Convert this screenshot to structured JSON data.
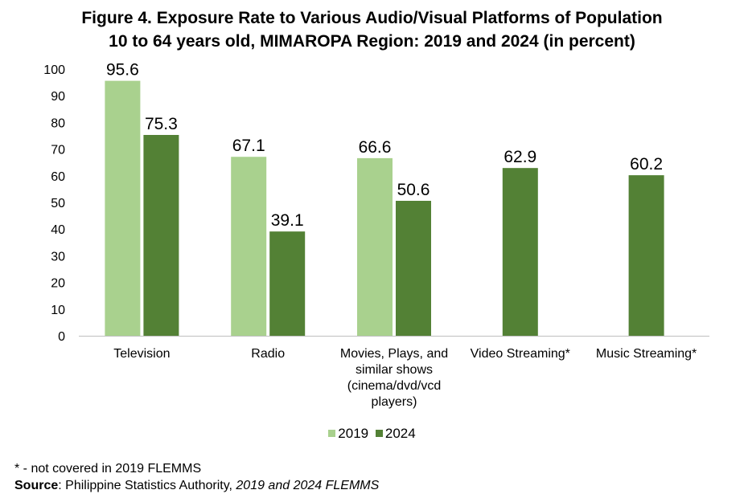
{
  "chart_data": {
    "type": "bar",
    "title_line1": "Figure 4. Exposure Rate to Various Audio/Visual Platforms of Population",
    "title_line2": "10 to 64 years old, MIMAROPA Region: 2019 and 2024 (in percent)",
    "categories": [
      [
        "Television"
      ],
      [
        "Radio"
      ],
      [
        "Movies, Plays, and",
        "similar shows",
        "(cinema/dvd/vcd",
        "players)"
      ],
      [
        "Video Streaming*"
      ],
      [
        "Music Streaming*"
      ]
    ],
    "series": [
      {
        "name": "2019",
        "color": "#a9d18e",
        "values": [
          95.6,
          67.1,
          66.6,
          null,
          null
        ]
      },
      {
        "name": "2024",
        "color": "#538135",
        "values": [
          75.3,
          39.1,
          50.6,
          62.9,
          60.2
        ]
      }
    ],
    "yticks": [
      "0",
      "10",
      "20",
      "30",
      "40",
      "50",
      "60",
      "70",
      "80",
      "90",
      "100"
    ],
    "ylim": [
      0,
      100
    ],
    "legend_position": "bottom",
    "grid": false
  },
  "footnote": "* - not covered in 2019 FLEMMS",
  "source": {
    "label": "Source",
    "sep": ": ",
    "org": "Philippine Statistics Authority, ",
    "survey": "2019 and 2024 FLEMMS"
  }
}
